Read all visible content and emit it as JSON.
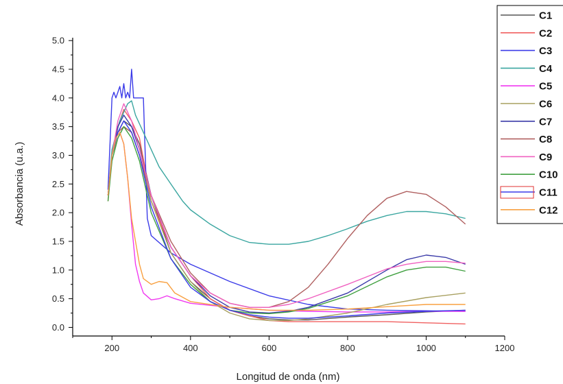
{
  "chart_data": {
    "type": "line",
    "xlabel": "Longitud de onda (nm)",
    "ylabel": "Absorbancia (u.a.)",
    "xlim": [
      100,
      1200
    ],
    "ylim": [
      -0.15,
      5.05
    ],
    "xticks": [
      200,
      400,
      600,
      800,
      1000,
      1200
    ],
    "yticks": [
      0.0,
      0.5,
      1.0,
      1.5,
      2.0,
      2.5,
      3.0,
      3.5,
      4.0,
      4.5,
      5.0
    ],
    "ytick_labels": [
      "0.0",
      "0.5",
      "1.0",
      "1.5",
      "2.0",
      "2.5",
      "3.0",
      "3.5",
      "4.0",
      "4.5",
      "5.0"
    ],
    "legend_position": "top-right",
    "series": [
      {
        "name": "C1",
        "color": "#555555",
        "x": [
          190,
          200,
          215,
          230,
          250,
          270,
          300,
          350,
          400,
          450,
          500,
          550,
          600,
          650,
          700,
          800,
          900,
          1000,
          1100
        ],
        "y": [
          2.3,
          3.0,
          3.4,
          3.6,
          3.5,
          3.2,
          2.3,
          1.3,
          0.8,
          0.5,
          0.3,
          0.2,
          0.15,
          0.13,
          0.13,
          0.18,
          0.22,
          0.27,
          0.3
        ]
      },
      {
        "name": "C2",
        "color": "#f06060",
        "x": [
          190,
          200,
          215,
          230,
          250,
          270,
          300,
          350,
          400,
          450,
          500,
          550,
          600,
          650,
          700,
          800,
          900,
          1000,
          1100
        ],
        "y": [
          2.2,
          3.0,
          3.5,
          3.8,
          3.6,
          3.3,
          2.2,
          1.4,
          0.9,
          0.5,
          0.3,
          0.2,
          0.12,
          0.1,
          0.1,
          0.1,
          0.1,
          0.08,
          0.06
        ]
      },
      {
        "name": "C3",
        "color": "#3a3ae8",
        "x": [
          190,
          200,
          205,
          210,
          215,
          220,
          225,
          230,
          235,
          240,
          245,
          250,
          255,
          260,
          270,
          280,
          290,
          300,
          350,
          400,
          500,
          600,
          700,
          800,
          900,
          1000,
          1100
        ],
        "y": [
          2.4,
          4.0,
          4.1,
          4.0,
          4.1,
          4.2,
          4.0,
          4.25,
          4.0,
          4.1,
          4.0,
          4.5,
          4.0,
          4.0,
          4.0,
          4.0,
          1.9,
          1.6,
          1.3,
          1.1,
          0.8,
          0.55,
          0.4,
          0.32,
          0.3,
          0.29,
          0.28
        ]
      },
      {
        "name": "C4",
        "color": "#3aa6a0",
        "x": [
          190,
          200,
          220,
          240,
          250,
          260,
          280,
          300,
          320,
          340,
          360,
          380,
          400,
          450,
          500,
          550,
          600,
          650,
          700,
          750,
          800,
          850,
          900,
          950,
          1000,
          1050,
          1100
        ],
        "y": [
          2.3,
          3.1,
          3.6,
          3.9,
          3.95,
          3.7,
          3.4,
          3.1,
          2.8,
          2.6,
          2.4,
          2.2,
          2.05,
          1.8,
          1.6,
          1.48,
          1.45,
          1.45,
          1.5,
          1.6,
          1.72,
          1.85,
          1.95,
          2.02,
          2.02,
          1.98,
          1.9
        ]
      },
      {
        "name": "C5",
        "color": "#f038f0",
        "x": [
          190,
          200,
          210,
          220,
          230,
          240,
          250,
          260,
          270,
          280,
          300,
          320,
          340,
          360,
          400,
          500,
          600,
          700,
          800,
          900,
          1000,
          1100
        ],
        "y": [
          2.3,
          3.0,
          3.3,
          3.4,
          3.2,
          2.6,
          1.8,
          1.1,
          0.8,
          0.6,
          0.48,
          0.5,
          0.55,
          0.5,
          0.42,
          0.35,
          0.3,
          0.28,
          0.27,
          0.27,
          0.28,
          0.28
        ]
      },
      {
        "name": "C6",
        "color": "#a8a060",
        "x": [
          190,
          200,
          215,
          230,
          250,
          270,
          300,
          350,
          400,
          450,
          500,
          550,
          600,
          650,
          700,
          800,
          900,
          1000,
          1100
        ],
        "y": [
          2.3,
          3.0,
          3.3,
          3.5,
          3.4,
          3.0,
          2.2,
          1.3,
          0.8,
          0.45,
          0.25,
          0.15,
          0.12,
          0.12,
          0.15,
          0.25,
          0.4,
          0.52,
          0.6
        ]
      },
      {
        "name": "C7",
        "color": "#3a3aa8",
        "x": [
          190,
          200,
          215,
          230,
          250,
          270,
          300,
          350,
          400,
          450,
          500,
          550,
          600,
          650,
          700,
          800,
          900,
          950,
          1000,
          1050,
          1100
        ],
        "y": [
          2.3,
          3.0,
          3.5,
          3.7,
          3.5,
          3.1,
          2.3,
          1.4,
          0.9,
          0.55,
          0.35,
          0.27,
          0.25,
          0.28,
          0.35,
          0.6,
          1.0,
          1.18,
          1.26,
          1.22,
          1.1
        ]
      },
      {
        "name": "C8",
        "color": "#b06060",
        "x": [
          190,
          200,
          215,
          230,
          250,
          270,
          300,
          350,
          400,
          450,
          500,
          550,
          600,
          650,
          700,
          750,
          800,
          850,
          900,
          950,
          1000,
          1050,
          1100
        ],
        "y": [
          2.3,
          3.0,
          3.4,
          3.5,
          3.4,
          3.0,
          2.3,
          1.5,
          0.95,
          0.6,
          0.42,
          0.35,
          0.35,
          0.45,
          0.7,
          1.1,
          1.55,
          1.95,
          2.25,
          2.37,
          2.32,
          2.1,
          1.8
        ]
      },
      {
        "name": "C9",
        "color": "#f060c0",
        "x": [
          190,
          200,
          215,
          230,
          250,
          270,
          300,
          350,
          400,
          450,
          500,
          550,
          600,
          650,
          700,
          800,
          900,
          950,
          1000,
          1050,
          1100
        ],
        "y": [
          2.3,
          3.0,
          3.6,
          3.9,
          3.6,
          3.1,
          2.3,
          1.4,
          0.9,
          0.6,
          0.42,
          0.35,
          0.35,
          0.4,
          0.5,
          0.75,
          1.02,
          1.1,
          1.15,
          1.15,
          1.12
        ]
      },
      {
        "name": "C10",
        "color": "#40a040",
        "x": [
          190,
          200,
          215,
          230,
          250,
          270,
          300,
          350,
          400,
          450,
          500,
          550,
          600,
          650,
          700,
          800,
          900,
          950,
          1000,
          1050,
          1100
        ],
        "y": [
          2.2,
          2.9,
          3.3,
          3.5,
          3.3,
          2.9,
          2.0,
          1.2,
          0.75,
          0.45,
          0.3,
          0.25,
          0.24,
          0.27,
          0.33,
          0.55,
          0.88,
          1.0,
          1.05,
          1.05,
          0.98
        ]
      },
      {
        "name": "C11",
        "color": "#3a3ae8",
        "x": [
          190,
          200,
          215,
          230,
          250,
          270,
          300,
          350,
          400,
          450,
          500,
          550,
          600,
          650,
          700,
          800,
          900,
          1000,
          1100
        ],
        "y": [
          2.3,
          3.0,
          3.4,
          3.6,
          3.4,
          3.0,
          2.1,
          1.2,
          0.7,
          0.45,
          0.3,
          0.22,
          0.18,
          0.16,
          0.16,
          0.2,
          0.25,
          0.28,
          0.3
        ]
      },
      {
        "name": "C12",
        "color": "#f8a040",
        "x": [
          190,
          200,
          210,
          220,
          230,
          240,
          250,
          260,
          270,
          280,
          300,
          320,
          340,
          360,
          400,
          500,
          600,
          700,
          800,
          900,
          1000,
          1100
        ],
        "y": [
          2.3,
          3.0,
          3.3,
          3.4,
          3.2,
          2.6,
          1.9,
          1.5,
          1.1,
          0.85,
          0.75,
          0.8,
          0.78,
          0.6,
          0.45,
          0.35,
          0.3,
          0.3,
          0.32,
          0.36,
          0.4,
          0.4
        ]
      }
    ]
  }
}
